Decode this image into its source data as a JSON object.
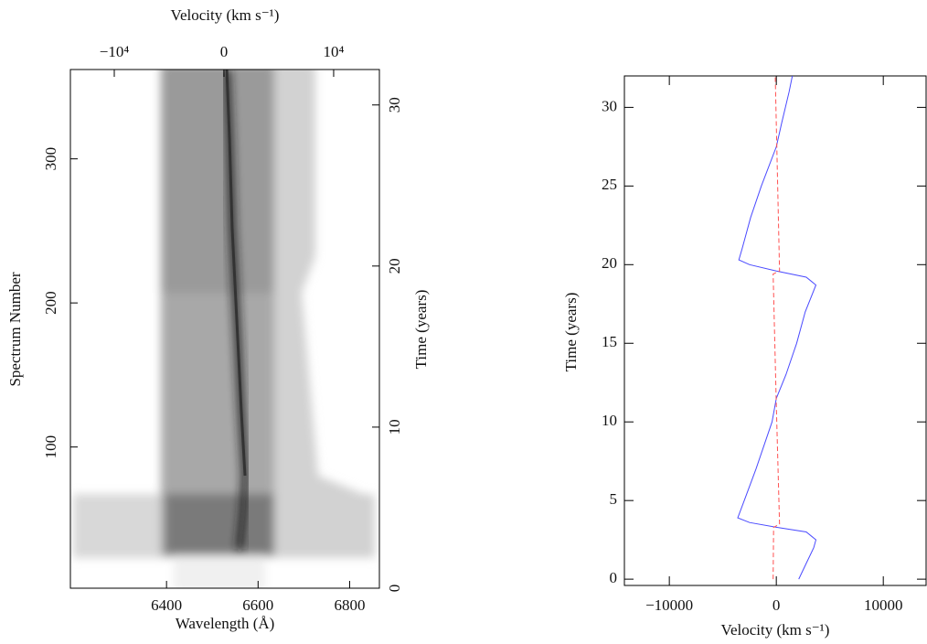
{
  "chart_data": [
    {
      "type": "image",
      "xlabel": "Wavelength (Å)",
      "xlim": [
        6190,
        6865
      ],
      "xticks": [
        6400,
        6600,
        6800
      ],
      "ylabel": "Spectrum Number",
      "ylim": [
        2,
        362
      ],
      "yticks": [
        100,
        200,
        300
      ],
      "x2label": "Velocity (km s⁻¹)",
      "x2lim": [
        -14000,
        14170
      ],
      "x2ticks": [
        {
          "value": -10000,
          "label": "−10⁴"
        },
        0,
        {
          "value": 10000,
          "label": "10⁴"
        }
      ],
      "y2label": "Time (years)",
      "y2lim": [
        0,
        32.2
      ],
      "y2ticks": [
        0,
        10,
        20,
        30
      ]
    },
    {
      "type": "line",
      "xlabel": "Velocity (km s⁻¹)",
      "xlim": [
        -14200,
        14000
      ],
      "xticks": [
        {
          "value": -10000,
          "label": "−10000"
        },
        0,
        10000
      ],
      "ylabel": "Time (years)",
      "ylim": [
        -0.4,
        32
      ],
      "yticks": [
        0,
        5,
        10,
        15,
        20,
        25,
        30
      ],
      "series": [
        {
          "color": "#4a4aff",
          "dash": false,
          "time": [
            0,
            1,
            2,
            2.5,
            3,
            3.3,
            3.6,
            3.9,
            5,
            7,
            10,
            11.5,
            13,
            15,
            17,
            18.7,
            19.2,
            19.6,
            20,
            20.3,
            21,
            23,
            25,
            27.5,
            29,
            31,
            32
          ],
          "velocity": [
            2100,
            2800,
            3500,
            3700,
            2800,
            0,
            -2500,
            -3600,
            -3000,
            -1900,
            -400,
            0,
            900,
            1900,
            2700,
            3700,
            2800,
            0,
            -2500,
            -3500,
            -3200,
            -2400,
            -1400,
            0,
            500,
            1200,
            1500
          ]
        },
        {
          "color": "#ff5050",
          "dash": true,
          "time": [
            0,
            3.3,
            3.5,
            11,
            19.4,
            19.6,
            32
          ],
          "velocity": [
            -300,
            -250,
            300,
            0,
            -300,
            300,
            -100
          ]
        }
      ]
    }
  ]
}
